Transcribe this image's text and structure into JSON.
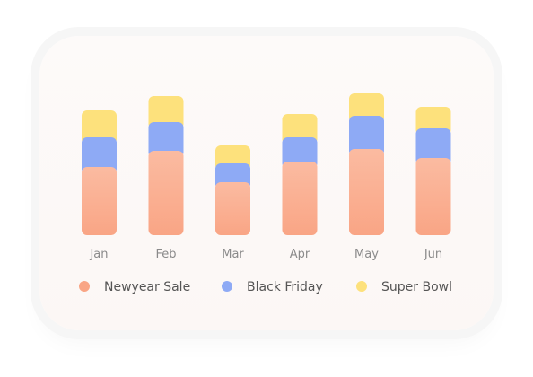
{
  "chart_data": {
    "type": "bar",
    "stacked": true,
    "categories": [
      "Jan",
      "Feb",
      "Mar",
      "Apr",
      "May",
      "Jun"
    ],
    "series": [
      {
        "name": "Newyear Sale",
        "values": [
          76,
          94,
          59,
          82,
          96,
          86
        ],
        "color": "#f9a585"
      },
      {
        "name": "Black Friday",
        "values": [
          33,
          32,
          21,
          27,
          37,
          33
        ],
        "color": "#8eaaf5"
      },
      {
        "name": "Super Bowl",
        "values": [
          30,
          29,
          20,
          26,
          25,
          24
        ],
        "color": "#fde17c"
      }
    ],
    "title": "",
    "xlabel": "",
    "ylabel": "",
    "ylim": [
      0,
      160
    ],
    "grid": false,
    "legend_position": "bottom"
  }
}
